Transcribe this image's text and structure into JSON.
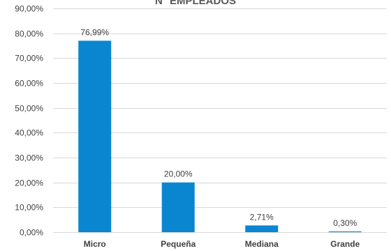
{
  "chart_data": {
    "type": "bar",
    "title": "N° EMPLEADOS",
    "categories": [
      "Micro",
      "Pequeña",
      "Mediana",
      "Grande"
    ],
    "values": [
      76.99,
      20.0,
      2.71,
      0.3
    ],
    "value_labels": [
      "76,99%",
      "20,00%",
      "2,71%",
      "0,30%"
    ],
    "ylim": [
      0,
      90
    ],
    "y_ticks": [
      0,
      10,
      20,
      30,
      40,
      50,
      60,
      70,
      80,
      90
    ],
    "y_tick_labels": [
      "0,00%",
      "10,00%",
      "20,00%",
      "30,00%",
      "40,00%",
      "50,00%",
      "60,00%",
      "70,00%",
      "80,00%",
      "90,00%"
    ],
    "xlabel": "",
    "ylabel": "",
    "grid": true,
    "legend": "none",
    "bar_color": "#0a86d1",
    "grid_color": "#d9d9d9"
  }
}
